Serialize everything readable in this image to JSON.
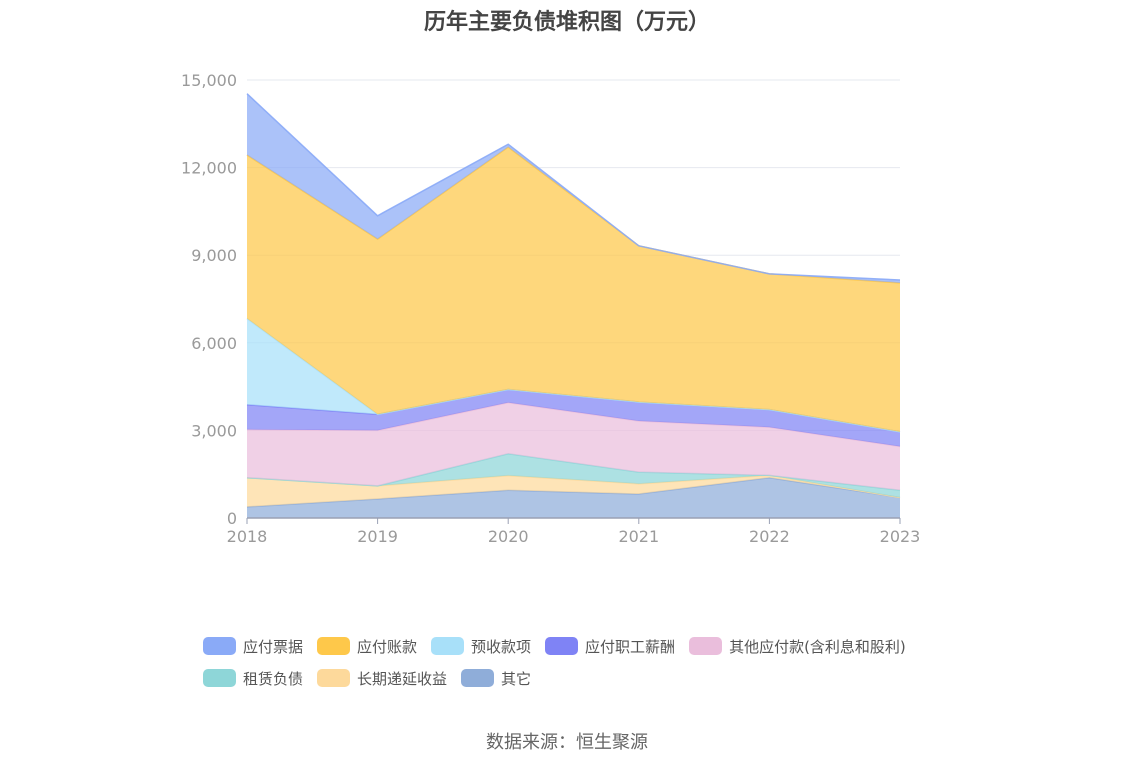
{
  "chart_data": {
    "type": "area",
    "stacked": true,
    "title": "历年主要负债堆积图（万元）",
    "categories": [
      "2018",
      "2019",
      "2020",
      "2021",
      "2022",
      "2023"
    ],
    "y_ticks": [
      "0",
      "3,000",
      "6,000",
      "9,000",
      "12,000",
      "15,000"
    ],
    "ylim": [
      0,
      15000
    ],
    "grid": true,
    "legend_position": "bottom",
    "series": [
      {
        "name": "其它",
        "color": "#8fadd9",
        "values": [
          380,
          650,
          950,
          820,
          1380,
          700
        ]
      },
      {
        "name": "长期递延收益",
        "color": "#fdd99b",
        "values": [
          1000,
          450,
          500,
          350,
          80,
          0
        ]
      },
      {
        "name": "租赁负债",
        "color": "#8ed6d8",
        "values": [
          0,
          0,
          750,
          400,
          0,
          250
        ]
      },
      {
        "name": "其他应付款(含利息和股利)",
        "color": "#eabedc",
        "values": [
          1650,
          1900,
          1750,
          1750,
          1650,
          1500
        ]
      },
      {
        "name": "应付职工薪酬",
        "color": "#7f83f5",
        "values": [
          850,
          550,
          450,
          650,
          600,
          500
        ]
      },
      {
        "name": "预收款项",
        "color": "#a8e0f9",
        "values": [
          2950,
          0,
          0,
          0,
          0,
          0
        ]
      },
      {
        "name": "应付账款",
        "color": "#fec84a",
        "values": [
          5600,
          6000,
          8300,
          5350,
          4650,
          5100
        ]
      },
      {
        "name": "应付票据",
        "color": "#8aaaf7",
        "values": [
          2100,
          800,
          100,
          0,
          0,
          100
        ]
      }
    ]
  },
  "legend": {
    "row1": [
      {
        "label": "应付票据",
        "color": "#8aaaf7"
      },
      {
        "label": "应付账款",
        "color": "#fec84a"
      },
      {
        "label": "预收款项",
        "color": "#a8e0f9"
      },
      {
        "label": "应付职工薪酬",
        "color": "#7f83f5"
      },
      {
        "label": "其他应付款(含利息和股利)",
        "color": "#eabedc"
      }
    ],
    "row2": [
      {
        "label": "租赁负债",
        "color": "#8ed6d8"
      },
      {
        "label": "长期递延收益",
        "color": "#fdd99b"
      },
      {
        "label": "其它",
        "color": "#8fadd9"
      }
    ]
  },
  "source": "数据来源：恒生聚源"
}
